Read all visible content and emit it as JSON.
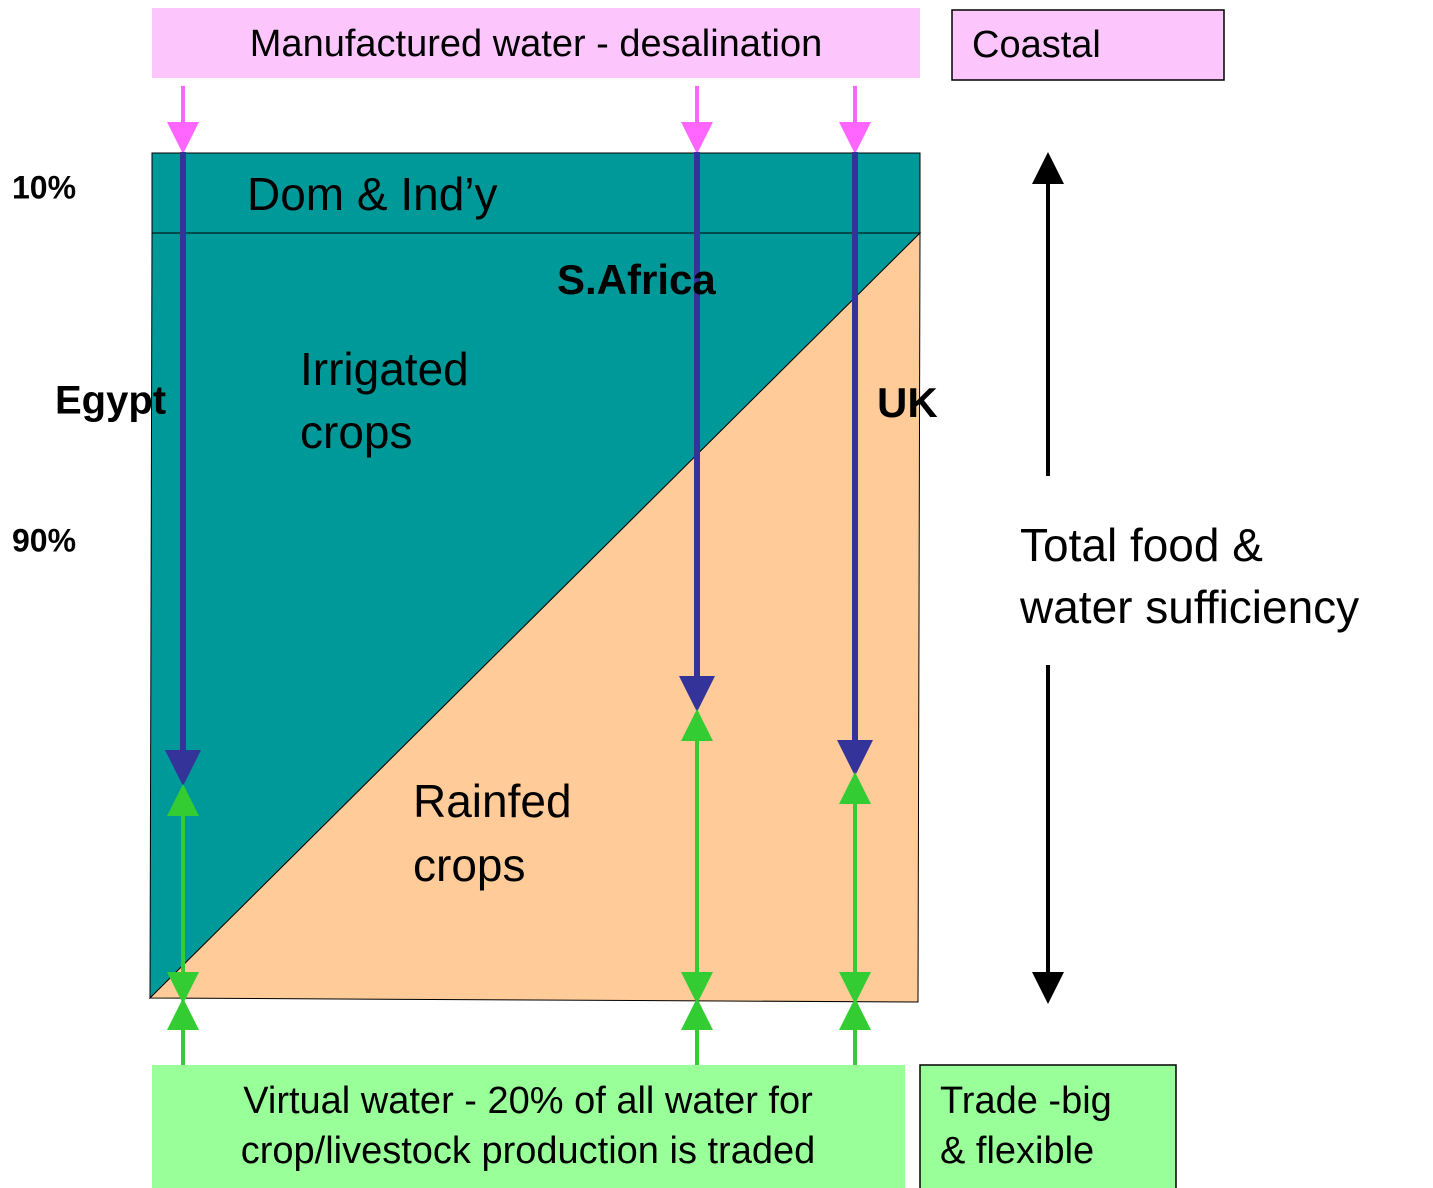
{
  "header": {
    "title": "Manufactured water - desalination",
    "side_box": "Coastal"
  },
  "left_labels": {
    "top": "10%",
    "bottom": "90%"
  },
  "regions": {
    "top_band": "Dom & Ind’y",
    "irrigated": [
      "Irrigated",
      "crops"
    ],
    "rainfed": [
      "Rainfed",
      "crops"
    ]
  },
  "countries": {
    "egypt": "Egypt",
    "south_africa": "S.Africa",
    "uk": "UK"
  },
  "right_label": [
    "Total food &",
    "water sufficiency"
  ],
  "footer": {
    "virtual_water": [
      "Virtual water - 20% of all water for",
      "crop/livestock production is traded"
    ],
    "trade": [
      "Trade -big",
      "& flexible"
    ]
  }
}
